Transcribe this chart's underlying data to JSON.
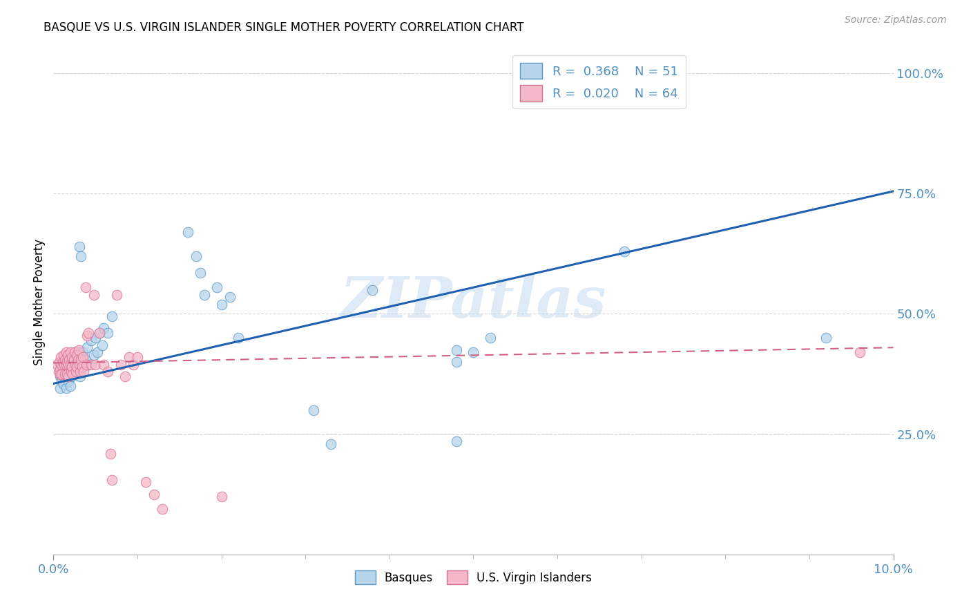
{
  "title": "BASQUE VS U.S. VIRGIN ISLANDER SINGLE MOTHER POVERTY CORRELATION CHART",
  "source": "Source: ZipAtlas.com",
  "ylabel": "Single Mother Poverty",
  "xlim": [
    0.0,
    0.1
  ],
  "ylim": [
    0.0,
    1.05
  ],
  "ytick_positions": [
    0.25,
    0.5,
    0.75,
    1.0
  ],
  "ytick_labels": [
    "25.0%",
    "50.0%",
    "75.0%",
    "100.0%"
  ],
  "xtick_positions": [
    0.0,
    0.1
  ],
  "xtick_labels": [
    "0.0%",
    "10.0%"
  ],
  "legend_r1": "R =  0.368",
  "legend_n1": "N = 51",
  "legend_r2": "R =  0.020",
  "legend_n2": "N = 64",
  "color_blue_fill": "#b8d4ea",
  "color_blue_edge": "#5b9ac8",
  "color_pink_fill": "#f4b8c8",
  "color_pink_edge": "#d87090",
  "color_blue_line": "#2060b0",
  "color_pink_line": "#d06080",
  "color_grid": "#cccccc",
  "color_tick": "#5090c0",
  "color_ylabel": "black",
  "watermark_text": "ZIPatlas",
  "watermark_color": "#c8ddf0",
  "blue_line_x0": 0.0,
  "blue_line_y0": 0.355,
  "blue_line_x1": 0.1,
  "blue_line_y1": 0.755,
  "pink_line_x0": 0.0,
  "pink_line_y0": 0.398,
  "pink_line_x1": 0.1,
  "pink_line_y1": 0.43,
  "basque_x": [
    0.0008,
    0.0008,
    0.001,
    0.0012,
    0.0015,
    0.0015,
    0.0018,
    0.002,
    0.002,
    0.0022,
    0.0025,
    0.0025,
    0.0028,
    0.003,
    0.003,
    0.0032,
    0.0032,
    0.0035,
    0.0035,
    0.0038,
    0.004,
    0.0042,
    0.0045,
    0.0048,
    0.005,
    0.0052,
    0.0055,
    0.0058,
    0.006,
    0.0065,
    0.007,
    0.0031,
    0.0033,
    0.031,
    0.033,
    0.048,
    0.05,
    0.052,
    0.048,
    0.068,
    0.048,
    0.092,
    0.038,
    0.021,
    0.022,
    0.016,
    0.017,
    0.0175,
    0.018,
    0.0195,
    0.02
  ],
  "basque_y": [
    0.37,
    0.345,
    0.36,
    0.355,
    0.375,
    0.345,
    0.36,
    0.38,
    0.35,
    0.37,
    0.4,
    0.375,
    0.395,
    0.42,
    0.385,
    0.4,
    0.37,
    0.42,
    0.39,
    0.405,
    0.43,
    0.395,
    0.445,
    0.415,
    0.45,
    0.42,
    0.46,
    0.435,
    0.47,
    0.46,
    0.495,
    0.64,
    0.62,
    0.3,
    0.23,
    0.235,
    0.42,
    0.45,
    0.425,
    0.63,
    0.4,
    0.45,
    0.55,
    0.535,
    0.45,
    0.67,
    0.62,
    0.585,
    0.54,
    0.555,
    0.52
  ],
  "vi_x": [
    0.0005,
    0.0006,
    0.0007,
    0.0008,
    0.0008,
    0.0009,
    0.001,
    0.001,
    0.0011,
    0.0012,
    0.0013,
    0.0014,
    0.0014,
    0.0015,
    0.0015,
    0.0016,
    0.0016,
    0.0017,
    0.0018,
    0.0018,
    0.0019,
    0.002,
    0.002,
    0.0021,
    0.0022,
    0.0022,
    0.0023,
    0.0024,
    0.0025,
    0.0026,
    0.0027,
    0.0028,
    0.0028,
    0.0029,
    0.003,
    0.0031,
    0.0032,
    0.0033,
    0.0034,
    0.0035,
    0.0036,
    0.0038,
    0.0039,
    0.004,
    0.0042,
    0.0045,
    0.0048,
    0.005,
    0.0055,
    0.006,
    0.0065,
    0.0068,
    0.007,
    0.0075,
    0.008,
    0.0085,
    0.009,
    0.0095,
    0.01,
    0.011,
    0.012,
    0.013,
    0.02,
    0.096
  ],
  "vi_y": [
    0.395,
    0.38,
    0.4,
    0.385,
    0.375,
    0.41,
    0.395,
    0.375,
    0.4,
    0.415,
    0.395,
    0.375,
    0.405,
    0.42,
    0.395,
    0.375,
    0.4,
    0.415,
    0.395,
    0.37,
    0.405,
    0.42,
    0.395,
    0.38,
    0.41,
    0.39,
    0.375,
    0.405,
    0.42,
    0.395,
    0.38,
    0.415,
    0.39,
    0.405,
    0.425,
    0.395,
    0.38,
    0.405,
    0.39,
    0.41,
    0.38,
    0.555,
    0.395,
    0.455,
    0.46,
    0.395,
    0.54,
    0.395,
    0.46,
    0.395,
    0.38,
    0.21,
    0.155,
    0.54,
    0.395,
    0.37,
    0.41,
    0.395,
    0.41,
    0.15,
    0.125,
    0.095,
    0.12,
    0.42
  ]
}
